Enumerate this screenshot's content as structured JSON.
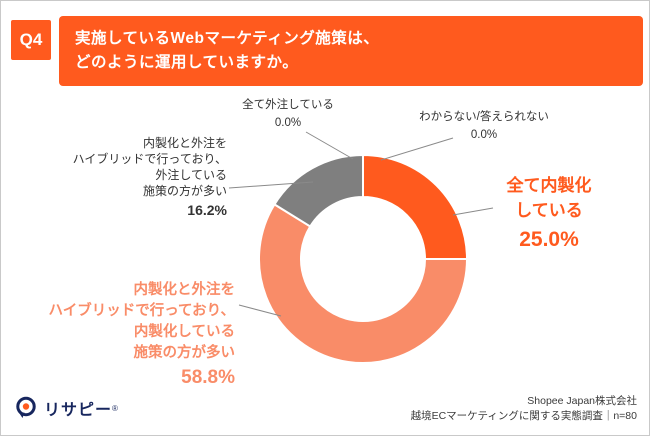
{
  "header": {
    "q_label": "Q4",
    "title_line1": "実施しているWebマーケティング施策は、",
    "title_line2": "どのように運用していますか。"
  },
  "chart_data": {
    "type": "pie",
    "subtype": "donut",
    "title": "実施しているWebマーケティング施策は、どのように運用していますか。",
    "unit": "%",
    "start_angle": "top",
    "direction": "clockwise",
    "segments": [
      {
        "label": "全て内製化している",
        "value": 25.0,
        "color": "#FF5A1E"
      },
      {
        "label": "内製化と外注をハイブリッドで行っており、内製化している施策の方が多い",
        "value": 58.8,
        "color": "#F98C68"
      },
      {
        "label": "内製化と外注をハイブリッドで行っており、外注している施策の方が多い",
        "value": 16.2,
        "color": "#7F7F7F"
      },
      {
        "label": "全て外注している",
        "value": 0.0,
        "color": "#B0B0B0"
      },
      {
        "label": "わからない/答えられない",
        "value": 0.0,
        "color": "#D0D0D0"
      }
    ]
  },
  "labels": {
    "all_outsourced": {
      "name": "全て外注している",
      "value": "0.0%"
    },
    "unknown": {
      "name": "わからない/答えられない",
      "value": "0.0%"
    },
    "hybrid_outsourced": {
      "l1": "内製化と外注を",
      "l2": "ハイブリッドで行っており、",
      "l3": "外注している",
      "l4": "施策の方が多い",
      "value": "16.2%"
    },
    "all_inhouse": {
      "l1": "全て内製化",
      "l2": "している",
      "value": "25.0%"
    },
    "hybrid_inhouse": {
      "l1": "内製化と外注を",
      "l2": "ハイブリッドで行っており、",
      "l3": "内製化している",
      "l4": "施策の方が多い",
      "value": "58.8%"
    }
  },
  "footer": {
    "logo_text": "リサピー",
    "logo_reg": "®",
    "source_line1": "Shopee Japan株式会社",
    "source_line2": "越境ECマーケティングに関する実態調査｜n=80"
  },
  "colors": {
    "accent_orange": "#FF5A1E",
    "salmon": "#F98C68",
    "gray": "#7F7F7F",
    "navy": "#17265E"
  }
}
